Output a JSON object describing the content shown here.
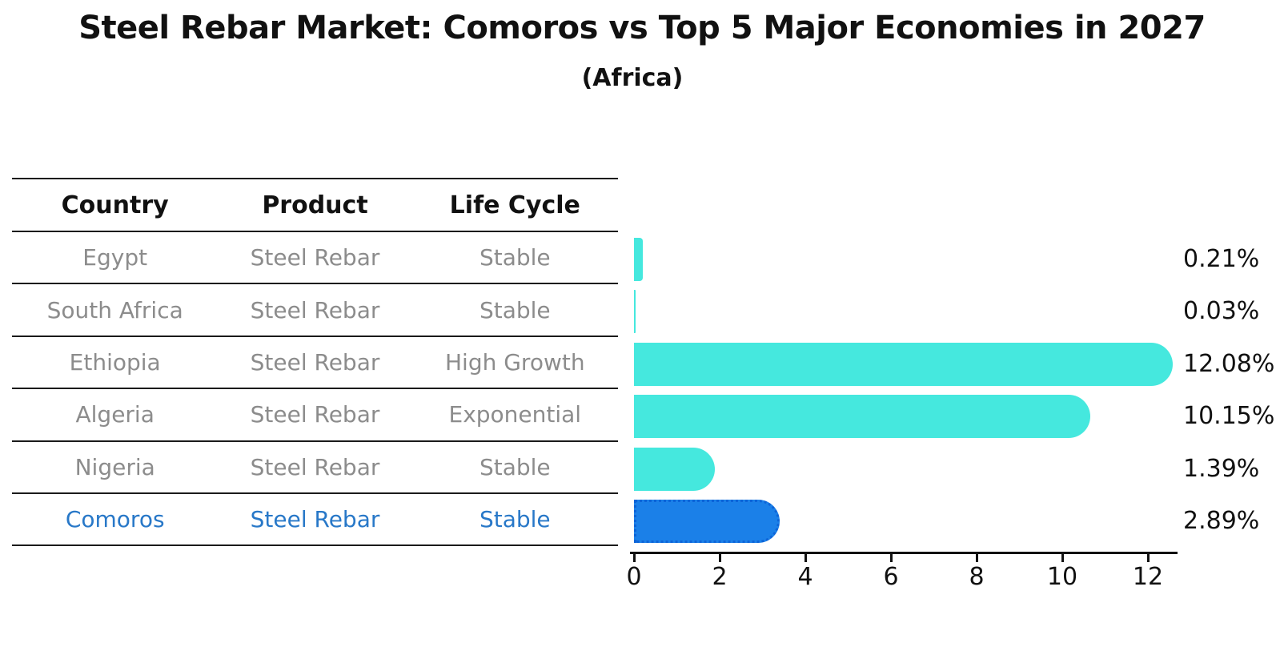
{
  "title": "Steel Rebar Market: Comoros vs Top 5 Major Economies in 2027",
  "subtitle": "(Africa)",
  "table": {
    "columns": [
      "Country",
      "Product",
      "Life Cycle"
    ],
    "rows": [
      {
        "country": "Egypt",
        "product": "Steel Rebar",
        "life_cycle": "Stable",
        "highlight": false
      },
      {
        "country": "South Africa",
        "product": "Steel Rebar",
        "life_cycle": "Stable",
        "highlight": false
      },
      {
        "country": "Ethiopia",
        "product": "Steel Rebar",
        "life_cycle": "High Growth",
        "highlight": false
      },
      {
        "country": "Algeria",
        "product": "Steel Rebar",
        "life_cycle": "Exponential",
        "highlight": false
      },
      {
        "country": "Nigeria",
        "product": "Steel Rebar",
        "life_cycle": "Stable",
        "highlight": false
      },
      {
        "country": "Comoros",
        "product": "Steel Rebar",
        "life_cycle": "Stable",
        "highlight": true
      }
    ]
  },
  "chart_data": {
    "type": "bar",
    "orientation": "horizontal",
    "title": "Steel Rebar Market: Comoros vs Top 5 Major Economies in 2027",
    "subtitle": "(Africa)",
    "categories": [
      "Egypt",
      "South Africa",
      "Ethiopia",
      "Algeria",
      "Nigeria",
      "Comoros"
    ],
    "values": [
      0.21,
      0.03,
      12.08,
      10.15,
      1.39,
      2.89
    ],
    "value_labels": [
      "0.21%",
      "0.03%",
      "12.08%",
      "10.15%",
      "1.39%",
      "2.89%"
    ],
    "x_ticks": [
      0,
      2,
      4,
      6,
      8,
      10,
      12
    ],
    "xlim": [
      0,
      12.7
    ],
    "ylabel": "",
    "xlabel": "",
    "grid": false,
    "legend": "none",
    "highlight_index": 5,
    "colors": {
      "bar": "#45e8de",
      "highlight_bar": "#1b80e8",
      "highlight_border": "#0d64d8",
      "row_text": "#8c8c8c",
      "highlight_text": "#2878c8",
      "heading_text": "#111111",
      "axis": "#111111"
    }
  }
}
